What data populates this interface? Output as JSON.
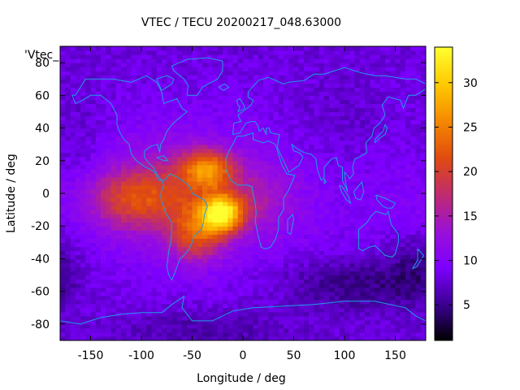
{
  "chart_data": {
    "type": "heatmap",
    "title": "VTEC / TECU 20200217_048.63000",
    "xlabel": "Longitude / deg",
    "ylabel": "Latitude / deg",
    "key_label": "'Vtec_",
    "xlim": [
      -180,
      180
    ],
    "ylim": [
      -90,
      90
    ],
    "xticks": [
      -150,
      -100,
      -50,
      0,
      50,
      100,
      150
    ],
    "yticks": [
      -80,
      -60,
      -40,
      -20,
      0,
      20,
      40,
      60,
      80
    ],
    "colorbar": {
      "min": 1,
      "max": 34,
      "ticks": [
        5,
        10,
        15,
        20,
        25,
        30
      ]
    },
    "colormap": [
      "#000000",
      "#3a008f",
      "#7d00ff",
      "#9a10d8",
      "#c02c6c",
      "#e04a10",
      "#f58a00",
      "#ffc800",
      "#ffff30"
    ],
    "coastline_color": "#1e9ce6",
    "background_vtec": 8,
    "features": [
      {
        "name": "equatorial anomaly core",
        "lon": -20,
        "lat": -12,
        "amp": 20,
        "sx": 14,
        "sy": 8
      },
      {
        "name": "south atlantic crest",
        "lon": -45,
        "lat": -25,
        "amp": 10,
        "sx": 18,
        "sy": 12
      },
      {
        "name": "northern crest",
        "lon": -35,
        "lat": 15,
        "amp": 13,
        "sx": 18,
        "sy": 8
      },
      {
        "name": "pacific extension",
        "lon": -110,
        "lat": -3,
        "amp": 8,
        "sx": 35,
        "sy": 12
      },
      {
        "name": "tropical band",
        "lon": -60,
        "lat": 0,
        "amp": 7,
        "sx": 55,
        "sy": 22
      },
      {
        "name": "africa band",
        "lon": 20,
        "lat": -5,
        "amp": 3,
        "sx": 25,
        "sy": 15
      },
      {
        "name": "pacific low",
        "lon": -160,
        "lat": 20,
        "amp": -2,
        "sx": 20,
        "sy": 30
      },
      {
        "name": "south indian low",
        "lon": 110,
        "lat": -55,
        "amp": -4,
        "sx": 50,
        "sy": 12
      },
      {
        "name": "australia low",
        "lon": 170,
        "lat": -45,
        "amp": -3,
        "sx": 20,
        "sy": 15
      },
      {
        "name": "antarctic low",
        "lon": -40,
        "lat": -82,
        "amp": -2,
        "sx": 60,
        "sy": 8
      },
      {
        "name": "asia low",
        "lon": 100,
        "lat": 45,
        "amp": -1.5,
        "sx": 40,
        "sy": 20
      }
    ],
    "grid_step": {
      "lon": 5,
      "lat": 2.5
    }
  },
  "coastlines": [
    {
      "name": "north-america",
      "points": [
        [
          -165,
          60
        ],
        [
          -155,
          70
        ],
        [
          -140,
          70
        ],
        [
          -128,
          70
        ],
        [
          -110,
          68
        ],
        [
          -95,
          72
        ],
        [
          -85,
          68
        ],
        [
          -80,
          62
        ],
        [
          -78,
          55
        ],
        [
          -65,
          58
        ],
        [
          -60,
          52
        ],
        [
          -55,
          50
        ],
        [
          -65,
          45
        ],
        [
          -70,
          42
        ],
        [
          -75,
          38
        ],
        [
          -78,
          33
        ],
        [
          -81,
          30
        ],
        [
          -82,
          25
        ],
        [
          -84,
          30
        ],
        [
          -90,
          29
        ],
        [
          -97,
          26
        ],
        [
          -97,
          22
        ],
        [
          -92,
          18
        ],
        [
          -88,
          16
        ],
        [
          -84,
          11
        ],
        [
          -80,
          8
        ],
        [
          -83,
          8
        ],
        [
          -87,
          13
        ],
        [
          -92,
          15
        ],
        [
          -96,
          16
        ],
        [
          -105,
          20
        ],
        [
          -110,
          24
        ],
        [
          -112,
          30
        ],
        [
          -117,
          33
        ],
        [
          -121,
          37
        ],
        [
          -124,
          42
        ],
        [
          -124,
          48
        ],
        [
          -130,
          55
        ],
        [
          -140,
          60
        ],
        [
          -150,
          60
        ],
        [
          -158,
          57
        ],
        [
          -165,
          55
        ],
        [
          -168,
          60
        ],
        [
          -165,
          60
        ]
      ]
    },
    {
      "name": "south-america",
      "points": [
        [
          -80,
          8
        ],
        [
          -77,
          8
        ],
        [
          -72,
          12
        ],
        [
          -65,
          10
        ],
        [
          -60,
          8
        ],
        [
          -52,
          4
        ],
        [
          -50,
          0
        ],
        [
          -44,
          -2
        ],
        [
          -38,
          -4
        ],
        [
          -35,
          -8
        ],
        [
          -38,
          -13
        ],
        [
          -39,
          -18
        ],
        [
          -41,
          -22
        ],
        [
          -48,
          -26
        ],
        [
          -50,
          -30
        ],
        [
          -53,
          -34
        ],
        [
          -58,
          -38
        ],
        [
          -62,
          -40
        ],
        [
          -65,
          -45
        ],
        [
          -68,
          -50
        ],
        [
          -70,
          -53
        ],
        [
          -73,
          -50
        ],
        [
          -75,
          -45
        ],
        [
          -73,
          -35
        ],
        [
          -71,
          -30
        ],
        [
          -70,
          -18
        ],
        [
          -76,
          -12
        ],
        [
          -80,
          -5
        ],
        [
          -81,
          -2
        ],
        [
          -80,
          2
        ],
        [
          -78,
          5
        ],
        [
          -80,
          8
        ]
      ]
    },
    {
      "name": "greenland",
      "points": [
        [
          -55,
          60
        ],
        [
          -45,
          60
        ],
        [
          -40,
          65
        ],
        [
          -25,
          70
        ],
        [
          -20,
          75
        ],
        [
          -20,
          81
        ],
        [
          -35,
          83
        ],
        [
          -55,
          82
        ],
        [
          -70,
          78
        ],
        [
          -68,
          75
        ],
        [
          -58,
          70
        ],
        [
          -54,
          66
        ],
        [
          -55,
          60
        ]
      ]
    },
    {
      "name": "africa",
      "points": [
        [
          -17,
          21
        ],
        [
          -17,
          15
        ],
        [
          -12,
          8
        ],
        [
          -5,
          5
        ],
        [
          5,
          5
        ],
        [
          9,
          4
        ],
        [
          10,
          0
        ],
        [
          12,
          -6
        ],
        [
          13,
          -12
        ],
        [
          12,
          -17
        ],
        [
          15,
          -26
        ],
        [
          18,
          -33
        ],
        [
          22,
          -34
        ],
        [
          27,
          -33
        ],
        [
          32,
          -28
        ],
        [
          35,
          -22
        ],
        [
          35,
          -15
        ],
        [
          40,
          -10
        ],
        [
          40,
          -3
        ],
        [
          45,
          2
        ],
        [
          51,
          11
        ],
        [
          43,
          12
        ],
        [
          38,
          18
        ],
        [
          32,
          30
        ],
        [
          25,
          32
        ],
        [
          20,
          31
        ],
        [
          10,
          33
        ],
        [
          10,
          37
        ],
        [
          0,
          35
        ],
        [
          -6,
          35
        ],
        [
          -10,
          30
        ],
        [
          -13,
          27
        ],
        [
          -17,
          21
        ]
      ]
    },
    {
      "name": "madagascar",
      "points": [
        [
          44,
          -16
        ],
        [
          49,
          -13
        ],
        [
          50,
          -16
        ],
        [
          47,
          -25
        ],
        [
          44,
          -24
        ],
        [
          44,
          -16
        ]
      ]
    },
    {
      "name": "eurasia",
      "points": [
        [
          -10,
          36
        ],
        [
          -9,
          43
        ],
        [
          -2,
          44
        ],
        [
          -5,
          48
        ],
        [
          2,
          51
        ],
        [
          8,
          54
        ],
        [
          10,
          57
        ],
        [
          5,
          59
        ],
        [
          5,
          62
        ],
        [
          15,
          69
        ],
        [
          25,
          71
        ],
        [
          40,
          67
        ],
        [
          45,
          68
        ],
        [
          60,
          69
        ],
        [
          70,
          73
        ],
        [
          80,
          73
        ],
        [
          100,
          77
        ],
        [
          115,
          74
        ],
        [
          130,
          72
        ],
        [
          140,
          72
        ],
        [
          160,
          70
        ],
        [
          170,
          70
        ],
        [
          180,
          67
        ],
        [
          180,
          64
        ],
        [
          170,
          60
        ],
        [
          163,
          60
        ],
        [
          158,
          52
        ],
        [
          155,
          57
        ],
        [
          143,
          59
        ],
        [
          137,
          54
        ],
        [
          140,
          48
        ],
        [
          135,
          43
        ],
        [
          129,
          40
        ],
        [
          127,
          35
        ],
        [
          121,
          31
        ],
        [
          122,
          25
        ],
        [
          117,
          23
        ],
        [
          110,
          21
        ],
        [
          108,
          16
        ],
        [
          109,
          12
        ],
        [
          105,
          9
        ],
        [
          103,
          11
        ],
        [
          100,
          13
        ],
        [
          101,
          7
        ],
        [
          103,
          1
        ],
        [
          98,
          8
        ],
        [
          98,
          16
        ],
        [
          94,
          17
        ],
        [
          92,
          22
        ],
        [
          87,
          21
        ],
        [
          80,
          16
        ],
        [
          80,
          10
        ],
        [
          77,
          8
        ],
        [
          73,
          15
        ],
        [
          72,
          21
        ],
        [
          67,
          24
        ],
        [
          60,
          25
        ],
        [
          57,
          26
        ],
        [
          52,
          28
        ],
        [
          48,
          30
        ],
        [
          50,
          26
        ],
        [
          55,
          25
        ],
        [
          57,
          24
        ],
        [
          59,
          22
        ],
        [
          55,
          17
        ],
        [
          45,
          13
        ],
        [
          43,
          16
        ],
        [
          39,
          21
        ],
        [
          34,
          28
        ],
        [
          35,
          33
        ],
        [
          36,
          36
        ],
        [
          27,
          37
        ],
        [
          26,
          40
        ],
        [
          23,
          40
        ],
        [
          23,
          36
        ],
        [
          20,
          40
        ],
        [
          16,
          38
        ],
        [
          15,
          41
        ],
        [
          12,
          44
        ],
        [
          8,
          44
        ],
        [
          3,
          43
        ],
        [
          -3,
          37
        ],
        [
          -10,
          36
        ]
      ]
    },
    {
      "name": "australia",
      "points": [
        [
          114,
          -22
        ],
        [
          114,
          -34
        ],
        [
          118,
          -35
        ],
        [
          124,
          -33
        ],
        [
          130,
          -32
        ],
        [
          135,
          -35
        ],
        [
          140,
          -38
        ],
        [
          147,
          -39
        ],
        [
          150,
          -37
        ],
        [
          153,
          -30
        ],
        [
          153,
          -25
        ],
        [
          146,
          -19
        ],
        [
          143,
          -11
        ],
        [
          141,
          -13
        ],
        [
          136,
          -12
        ],
        [
          131,
          -11
        ],
        [
          126,
          -14
        ],
        [
          122,
          -18
        ],
        [
          114,
          -22
        ]
      ]
    },
    {
      "name": "antarctica",
      "points": [
        [
          -180,
          -78
        ],
        [
          -160,
          -80
        ],
        [
          -140,
          -76
        ],
        [
          -120,
          -74
        ],
        [
          -100,
          -73
        ],
        [
          -80,
          -73
        ],
        [
          -70,
          -68
        ],
        [
          -58,
          -63
        ],
        [
          -60,
          -70
        ],
        [
          -50,
          -78
        ],
        [
          -30,
          -78
        ],
        [
          -10,
          -72
        ],
        [
          10,
          -70
        ],
        [
          40,
          -69
        ],
        [
          70,
          -68
        ],
        [
          100,
          -66
        ],
        [
          130,
          -66
        ],
        [
          160,
          -70
        ],
        [
          170,
          -75
        ],
        [
          180,
          -78
        ]
      ]
    },
    {
      "name": "british-isles",
      "points": [
        [
          -5,
          50
        ],
        [
          2,
          52
        ],
        [
          0,
          55
        ],
        [
          -3,
          58
        ],
        [
          -6,
          57
        ],
        [
          -5,
          54
        ],
        [
          -3,
          53
        ],
        [
          -5,
          50
        ]
      ]
    },
    {
      "name": "japan",
      "points": [
        [
          130,
          31
        ],
        [
          135,
          34
        ],
        [
          140,
          36
        ],
        [
          142,
          40
        ],
        [
          140,
          42
        ],
        [
          138,
          38
        ],
        [
          133,
          35
        ],
        [
          130,
          33
        ],
        [
          130,
          31
        ]
      ]
    },
    {
      "name": "new-zealand",
      "points": [
        [
          172,
          -34
        ],
        [
          178,
          -38
        ],
        [
          175,
          -41
        ],
        [
          171,
          -45
        ],
        [
          167,
          -46
        ],
        [
          172,
          -41
        ],
        [
          172,
          -34
        ]
      ]
    },
    {
      "name": "borneo",
      "points": [
        [
          109,
          1
        ],
        [
          113,
          4
        ],
        [
          117,
          7
        ],
        [
          119,
          1
        ],
        [
          116,
          -4
        ],
        [
          111,
          -3
        ],
        [
          109,
          1
        ]
      ]
    },
    {
      "name": "sumatra",
      "points": [
        [
          95,
          5
        ],
        [
          98,
          4
        ],
        [
          104,
          -2
        ],
        [
          106,
          -6
        ],
        [
          102,
          -4
        ],
        [
          97,
          1
        ],
        [
          95,
          5
        ]
      ]
    },
    {
      "name": "new-guinea",
      "points": [
        [
          131,
          -1
        ],
        [
          140,
          -3
        ],
        [
          150,
          -6
        ],
        [
          147,
          -9
        ],
        [
          142,
          -9
        ],
        [
          138,
          -8
        ],
        [
          132,
          -4
        ],
        [
          131,
          -1
        ]
      ]
    },
    {
      "name": "iceland",
      "points": [
        [
          -24,
          65
        ],
        [
          -18,
          67
        ],
        [
          -14,
          65
        ],
        [
          -19,
          63
        ],
        [
          -24,
          65
        ]
      ]
    },
    {
      "name": "cuba",
      "points": [
        [
          -85,
          22
        ],
        [
          -78,
          23
        ],
        [
          -74,
          20
        ],
        [
          -78,
          20
        ],
        [
          -85,
          22
        ]
      ]
    },
    {
      "name": "sri-lanka",
      "points": [
        [
          80,
          9
        ],
        [
          82,
          7
        ],
        [
          80,
          6
        ],
        [
          80,
          9
        ]
      ]
    },
    {
      "name": "baffin-island",
      "points": [
        [
          -80,
          63
        ],
        [
          -70,
          67
        ],
        [
          -68,
          70
        ],
        [
          -75,
          72
        ],
        [
          -85,
          70
        ],
        [
          -80,
          63
        ]
      ]
    }
  ]
}
